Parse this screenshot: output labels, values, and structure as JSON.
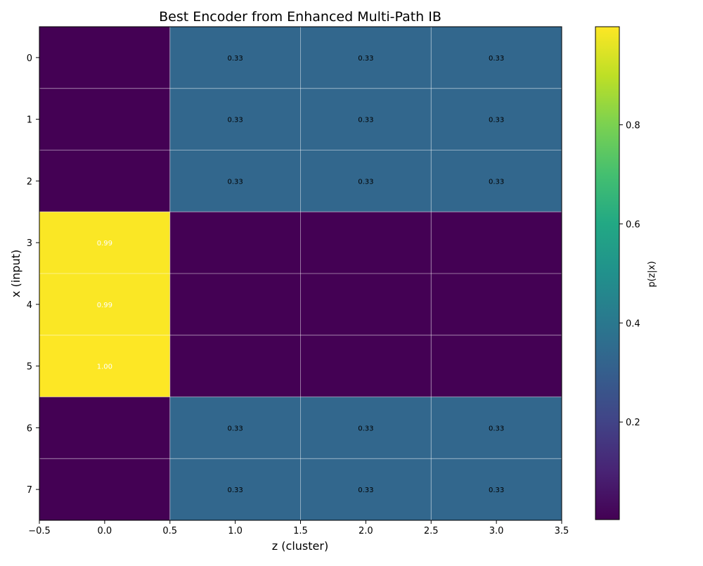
{
  "chart_data": {
    "type": "heatmap",
    "title": "Best Encoder from Enhanced Multi-Path IB",
    "xlabel": "z (cluster)",
    "ylabel": "x (input)",
    "x_ticks": [
      "−0.5",
      "0.0",
      "0.5",
      "1.0",
      "1.5",
      "2.0",
      "2.5",
      "3.0",
      "3.5"
    ],
    "x_tick_values": [
      -0.5,
      0.0,
      0.5,
      1.0,
      1.5,
      2.0,
      2.5,
      3.0,
      3.5
    ],
    "xlim": [
      -0.5,
      3.5
    ],
    "ylim": [
      -0.5,
      7.5
    ],
    "rows": [
      "0",
      "1",
      "2",
      "3",
      "4",
      "5",
      "6",
      "7"
    ],
    "columns": [
      0,
      1,
      2,
      3
    ],
    "values": [
      [
        0.0,
        0.333,
        0.333,
        0.333
      ],
      [
        0.0,
        0.333,
        0.333,
        0.333
      ],
      [
        0.0,
        0.333,
        0.333,
        0.333
      ],
      [
        0.993,
        0.0,
        0.0,
        0.0
      ],
      [
        0.993,
        0.0,
        0.0,
        0.0
      ],
      [
        0.998,
        0.0,
        0.0,
        0.0
      ],
      [
        0.0,
        0.333,
        0.333,
        0.333
      ],
      [
        0.0,
        0.333,
        0.333,
        0.333
      ]
    ],
    "cell_labels": [
      [
        "",
        "0.33",
        "0.33",
        "0.33"
      ],
      [
        "",
        "0.33",
        "0.33",
        "0.33"
      ],
      [
        "",
        "0.33",
        "0.33",
        "0.33"
      ],
      [
        "0.99",
        "",
        "",
        ""
      ],
      [
        "0.99",
        "",
        "",
        ""
      ],
      [
        "1.00",
        "",
        "",
        ""
      ],
      [
        "",
        "0.33",
        "0.33",
        "0.33"
      ],
      [
        "",
        "0.33",
        "0.33",
        "0.33"
      ]
    ],
    "colormap": "viridis",
    "colorbar": {
      "label": "p(z|x)",
      "range": [
        0.003,
        0.998
      ],
      "ticks": [
        "0.2",
        "0.4",
        "0.6",
        "0.8"
      ],
      "tick_values": [
        0.2,
        0.4,
        0.6,
        0.8
      ]
    },
    "grid": true,
    "colors": {
      "low": "#440154",
      "mid": "#31688e",
      "high": "#fde725",
      "label_dark": "#000000",
      "label_light": "#ffffff"
    }
  }
}
